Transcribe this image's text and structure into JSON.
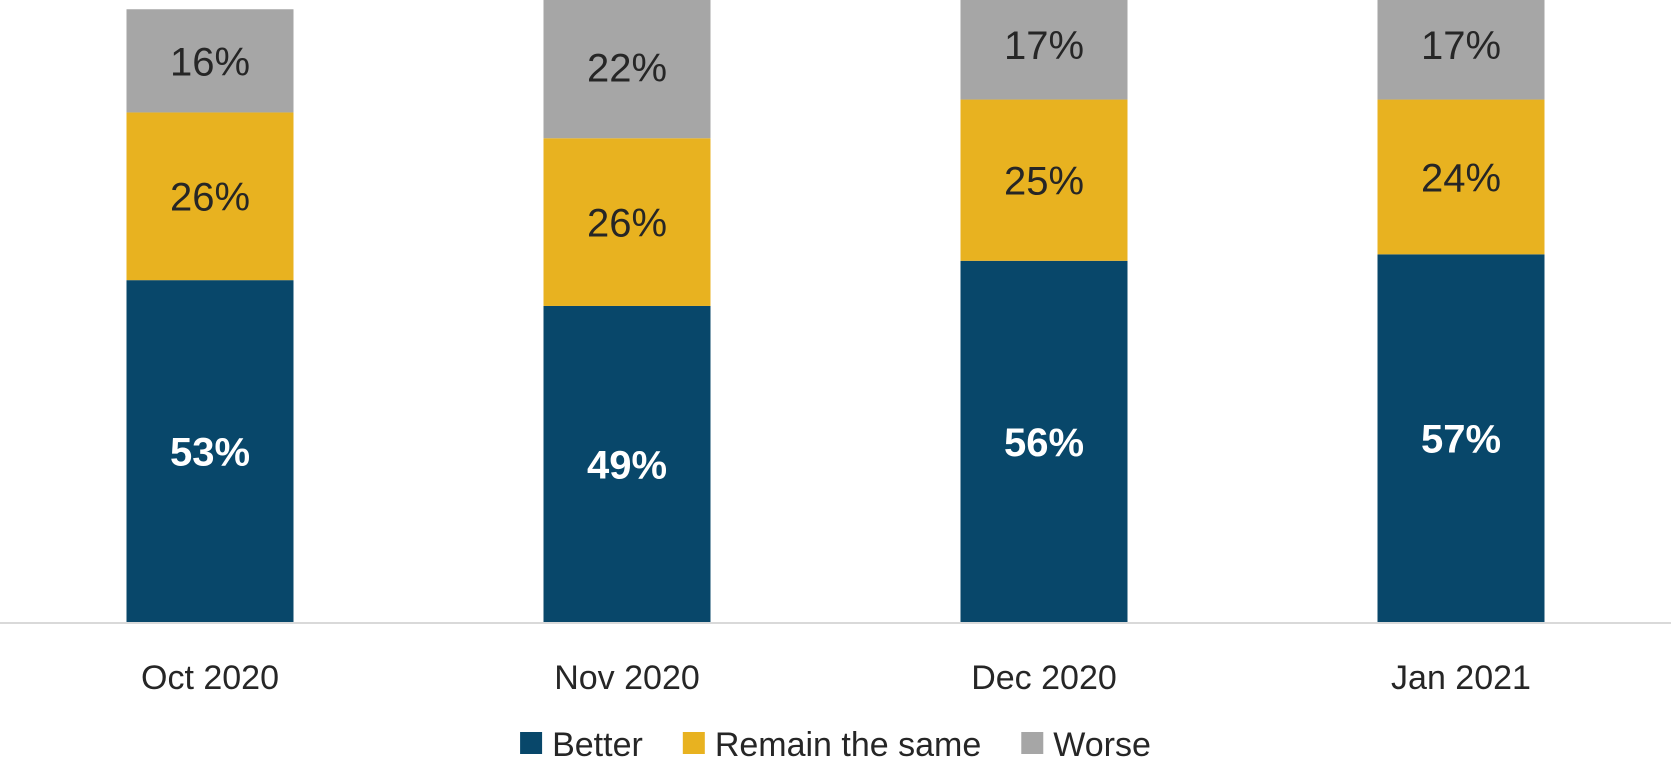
{
  "chart_data": {
    "type": "bar",
    "stacked": true,
    "categories": [
      "Oct 2020",
      "Nov 2020",
      "Dec 2020",
      "Jan 2021"
    ],
    "series": [
      {
        "name": "Better",
        "values": [
          53,
          49,
          56,
          57
        ],
        "labels": [
          "53%",
          "49%",
          "56%",
          "57%"
        ],
        "color": "#08476A",
        "label_color": "#FFFFFF",
        "label_bold": true
      },
      {
        "name": "Remain the same",
        "values": [
          26,
          26,
          25,
          24
        ],
        "labels": [
          "26%",
          "26%",
          "25%",
          "24%"
        ],
        "color": "#E8B220",
        "label_color": "#262626",
        "label_bold": false
      },
      {
        "name": "Worse",
        "values": [
          16,
          22,
          17,
          17
        ],
        "labels": [
          "16%",
          "22%",
          "17%",
          "17%"
        ],
        "color": "#A6A6A6",
        "label_color": "#262626",
        "label_bold": false
      }
    ],
    "title": "",
    "xlabel": "",
    "ylabel": "",
    "ylim": [
      0,
      100
    ],
    "grid": false,
    "legend_position": "bottom",
    "axis_color": "#D9D9D9"
  }
}
